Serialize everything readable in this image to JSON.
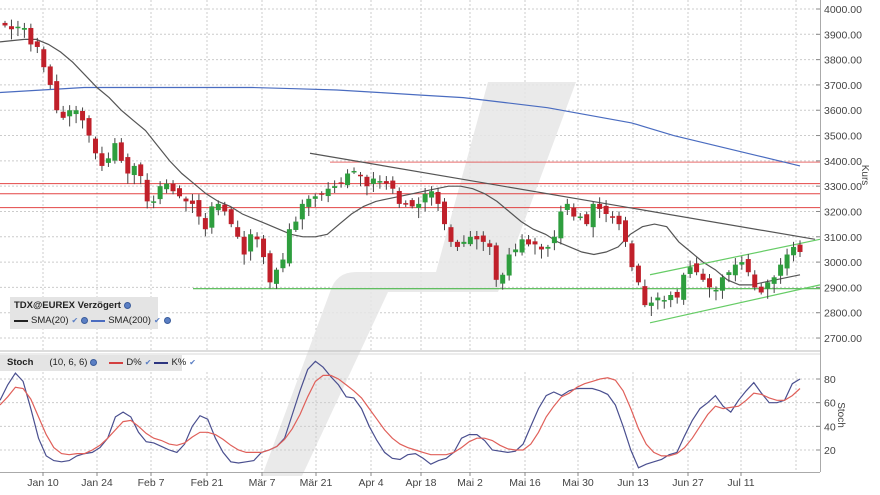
{
  "instrument": {
    "name": "TDX@EUREX Verzögert",
    "indicators": [
      {
        "label": "SMA(20)",
        "color": "#333333"
      },
      {
        "label": "SMA(200)",
        "color": "#4a6cc0"
      }
    ]
  },
  "stoch_panel": {
    "title": "Stoch",
    "params": "(10, 6, 6)",
    "lines": [
      {
        "label": "D%",
        "color": "#d44040"
      },
      {
        "label": "K%",
        "color": "#2d3580"
      }
    ]
  },
  "colors": {
    "up_candle": "#2e9e3e",
    "down_candle": "#c0202a",
    "resistance": "#e03030",
    "support": "#4cb84c",
    "sma20": "#555555",
    "sma200": "#4a6cc0",
    "trendline": "#555555",
    "channel": "#66cc66",
    "grid": "#cccccc"
  },
  "chart_data": [
    {
      "type": "candlestick",
      "title": "TDX@EUREX Verzögert",
      "ylabel": "Kurs",
      "ylim": [
        2650,
        4050
      ],
      "yticks": [
        4000,
        3900,
        3800,
        3700,
        3600,
        3500,
        3400,
        3300,
        3200,
        3100,
        3000,
        2900,
        2800,
        2700
      ],
      "ytick_labels": [
        "4000.00",
        "3900.00",
        "3800.00",
        "3700.00",
        "3600.00",
        "3500.00",
        "3400.00",
        "3300.00",
        "3200.00",
        "3100.00",
        "3000.00",
        "2900.00",
        "2800.00",
        "2700.00"
      ],
      "xtick_labels": [
        "Jan 10",
        "Jan 24",
        "Feb 7",
        "Feb 21",
        "Mär 7",
        "Mär 21",
        "Apr 4",
        "Apr 18",
        "Mai 2",
        "Mai 16",
        "Mai 30",
        "Jun 13",
        "Jun 27",
        "Jul 11"
      ],
      "grid": true,
      "horizontal_lines": {
        "resistance": [
          3395,
          3310,
          3270,
          3215
        ],
        "support": [
          2895
        ]
      },
      "candles_close_approx": [
        3935,
        3920,
        3930,
        3925,
        3860,
        3850,
        3770,
        3700,
        3600,
        3570,
        3600,
        3600,
        3560,
        3500,
        3430,
        3380,
        3410,
        3470,
        3400,
        3350,
        3380,
        3340,
        3240,
        3240,
        3300,
        3310,
        3280,
        3260,
        3240,
        3230,
        3180,
        3130,
        3220,
        3230,
        3200,
        3150,
        3100,
        3030,
        3110,
        3090,
        3020,
        2920,
        2970,
        3010,
        3130,
        3160,
        3230,
        3250,
        3260,
        3270,
        3290,
        3300,
        3310,
        3350,
        3360,
        3340,
        3300,
        3330,
        3320,
        3310,
        3290,
        3230,
        3230,
        3220,
        3230,
        3270,
        3280,
        3230,
        3150,
        3080,
        3060,
        3080,
        3100,
        3090,
        3080,
        3060,
        2930,
        2950,
        3030,
        3050,
        3090,
        3070,
        3070,
        3050,
        3060,
        3100,
        3200,
        3230,
        3180,
        3180,
        3150,
        3230,
        3210,
        3190,
        3180,
        3150,
        3080,
        2980,
        2920,
        2830,
        2840,
        2860,
        2850,
        2870,
        2860,
        2950,
        2980,
        2960,
        2930,
        2900,
        2890,
        2940,
        2960,
        2990,
        3000,
        2960,
        2900,
        2880,
        2920,
        2940,
        2990,
        3030,
        3060,
        3040
      ],
      "sma20_approx": [
        3870,
        3875,
        3880,
        3880,
        3860,
        3830,
        3790,
        3740,
        3690,
        3650,
        3600,
        3560,
        3520,
        3460,
        3400,
        3350,
        3310,
        3270,
        3240,
        3220,
        3190,
        3170,
        3150,
        3130,
        3110,
        3100,
        3100,
        3110,
        3150,
        3190,
        3220,
        3240,
        3250,
        3260,
        3270,
        3280,
        3290,
        3300,
        3300,
        3290,
        3270,
        3240,
        3200,
        3160,
        3130,
        3110,
        3080,
        3060,
        3040,
        3030,
        3040,
        3060,
        3110,
        3140,
        3150,
        3140,
        3080,
        3040,
        3000,
        2970,
        2930,
        2910,
        2910,
        2920,
        2930,
        2940,
        2950
      ],
      "sma200_approx": [
        3670,
        3680,
        3690,
        3690,
        3690,
        3690,
        3690,
        3685,
        3680,
        3670,
        3660,
        3650,
        3630,
        3610,
        3580,
        3550,
        3500,
        3460,
        3420,
        3380
      ],
      "trendline": {
        "from": {
          "x": "Mär 21",
          "y": 3430
        },
        "to": {
          "x": "Jul 18",
          "y": 3090
        }
      },
      "channel_upper": {
        "from": {
          "x": "Jun 13",
          "y": 2950
        },
        "to": {
          "x": "Jul 18",
          "y": 3090
        }
      },
      "channel_lower": {
        "from": {
          "x": "Jun 13",
          "y": 2760
        },
        "to": {
          "x": "Jul 18",
          "y": 2910
        }
      }
    },
    {
      "type": "line",
      "title": "Stoch (10, 6, 6)",
      "ylabel": "Stoch",
      "yticks": [
        20,
        40,
        60,
        80
      ],
      "ylim": [
        0,
        100
      ],
      "grid": true,
      "series": [
        {
          "name": "K%",
          "values": [
            62,
            75,
            85,
            78,
            55,
            30,
            15,
            11,
            10,
            11,
            15,
            17,
            18,
            22,
            30,
            48,
            52,
            48,
            35,
            27,
            26,
            23,
            20,
            18,
            25,
            40,
            49,
            46,
            30,
            18,
            10,
            9,
            10,
            11,
            18,
            20,
            23,
            30,
            50,
            70,
            88,
            95,
            90,
            82,
            75,
            65,
            64,
            55,
            40,
            28,
            18,
            13,
            12,
            16,
            17,
            13,
            8,
            11,
            13,
            18,
            30,
            33,
            33,
            28,
            20,
            19,
            18,
            19,
            25,
            40,
            55,
            66,
            69,
            66,
            70,
            72,
            72,
            72,
            70,
            67,
            58,
            40,
            20,
            5,
            8,
            10,
            12,
            16,
            18,
            32,
            45,
            55,
            60,
            66,
            57,
            52,
            62,
            70,
            77,
            68,
            60,
            60,
            62,
            76,
            80
          ]
        },
        {
          "name": "D%",
          "values": [
            58,
            65,
            73,
            72,
            63,
            48,
            33,
            22,
            17,
            16,
            17,
            17,
            20,
            24,
            30,
            37,
            44,
            45,
            40,
            34,
            30,
            28,
            25,
            24,
            26,
            31,
            35,
            35,
            33,
            29,
            24,
            20,
            18,
            18,
            18,
            20,
            23,
            29,
            38,
            50,
            65,
            78,
            83,
            83,
            80,
            75,
            70,
            64,
            55,
            46,
            37,
            30,
            25,
            22,
            20,
            18,
            16,
            16,
            16,
            18,
            22,
            27,
            30,
            30,
            28,
            24,
            21,
            20,
            20,
            25,
            35,
            48,
            57,
            65,
            68,
            73,
            76,
            78,
            80,
            81,
            79,
            70,
            55,
            38,
            25,
            18,
            15,
            15,
            17,
            22,
            30,
            40,
            50,
            57,
            55,
            56,
            57,
            62,
            68,
            67,
            64,
            62,
            62,
            66,
            72
          ]
        }
      ]
    }
  ],
  "watermark": "stylized slash logo"
}
